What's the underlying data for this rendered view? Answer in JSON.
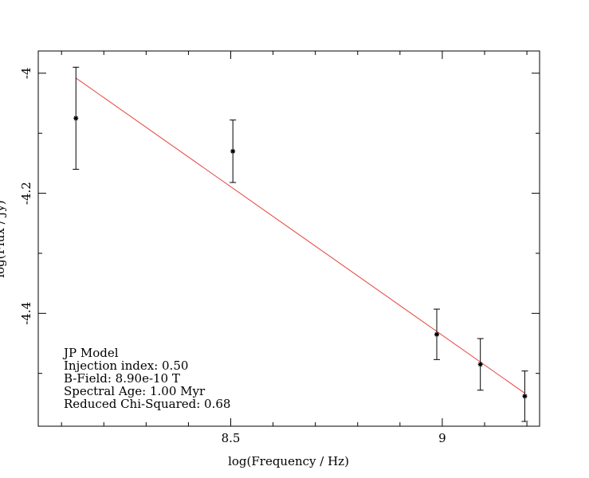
{
  "chart_data": {
    "type": "scatter",
    "title": "",
    "xlabel": "log(Frequency / Hz)",
    "ylabel": "log(Flux / Jy)",
    "xlim": [
      8.045,
      9.23
    ],
    "ylim": [
      -4.588,
      -3.963
    ],
    "xticks": [
      8.5,
      9.0
    ],
    "xtick_labels": [
      "8.5",
      "9"
    ],
    "yticks": [
      -4.0,
      -4.2,
      -4.4
    ],
    "ytick_labels": [
      "-4",
      "-4.2",
      "-4.4"
    ],
    "x_minor_step": 0.1,
    "y_minor_step": 0.1,
    "grid": false,
    "series": [
      {
        "kind": "points_with_errorbars",
        "color": "#000000",
        "points": [
          {
            "x": 8.134,
            "y": -4.075,
            "err": 0.085
          },
          {
            "x": 8.505,
            "y": -4.13,
            "err": 0.052
          },
          {
            "x": 8.987,
            "y": -4.435,
            "err": 0.042
          },
          {
            "x": 9.09,
            "y": -4.485,
            "err": 0.043
          },
          {
            "x": 9.195,
            "y": -4.538,
            "err": 0.042
          }
        ]
      },
      {
        "kind": "model_line",
        "color": "#e8413c",
        "points": [
          {
            "x": 8.134,
            "y": -4.008
          },
          {
            "x": 9.195,
            "y": -4.533
          }
        ]
      }
    ],
    "annotations": [
      "JP Model",
      "Injection index: 0.50",
      "B-Field: 8.90e-10 T",
      "Spectral Age: 1.00 Myr",
      "Reduced Chi-Squared: 0.68"
    ]
  }
}
